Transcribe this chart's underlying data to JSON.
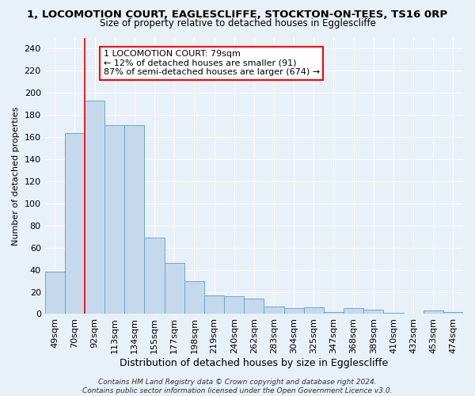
{
  "title": "1, LOCOMOTION COURT, EAGLESCLIFFE, STOCKTON-ON-TEES, TS16 0RP",
  "subtitle": "Size of property relative to detached houses in Egglescliffe",
  "xlabel": "Distribution of detached houses by size in Egglescliffe",
  "ylabel": "Number of detached properties",
  "categories": [
    "49sqm",
    "70sqm",
    "92sqm",
    "113sqm",
    "134sqm",
    "155sqm",
    "177sqm",
    "198sqm",
    "219sqm",
    "240sqm",
    "262sqm",
    "283sqm",
    "304sqm",
    "325sqm",
    "347sqm",
    "368sqm",
    "389sqm",
    "410sqm",
    "432sqm",
    "453sqm",
    "474sqm"
  ],
  "values": [
    38,
    164,
    193,
    171,
    171,
    69,
    46,
    30,
    17,
    16,
    14,
    7,
    5,
    6,
    2,
    5,
    4,
    1,
    0,
    3,
    2
  ],
  "bar_color": "#c5d8ec",
  "bar_edge_color": "#6aaad4",
  "bar_linewidth": 0.7,
  "annotation_text": "1 LOCOMOTION COURT: 79sqm\n← 12% of detached houses are smaller (91)\n87% of semi-detached houses are larger (674) →",
  "annotation_box_color": "white",
  "annotation_box_edge_color": "red",
  "vline_color": "red",
  "vline_x": 1.5,
  "bg_color": "#e8f0f8",
  "grid_color": "white",
  "footer": "Contains HM Land Registry data © Crown copyright and database right 2024.\nContains public sector information licensed under the Open Government Licence v3.0.",
  "ylim": [
    0,
    250
  ],
  "yticks": [
    0,
    20,
    40,
    60,
    80,
    100,
    120,
    140,
    160,
    180,
    200,
    220,
    240
  ],
  "title_fontsize": 9.5,
  "subtitle_fontsize": 8.5,
  "ylabel_fontsize": 8,
  "xlabel_fontsize": 9,
  "tick_fontsize": 8,
  "annot_fontsize": 8
}
